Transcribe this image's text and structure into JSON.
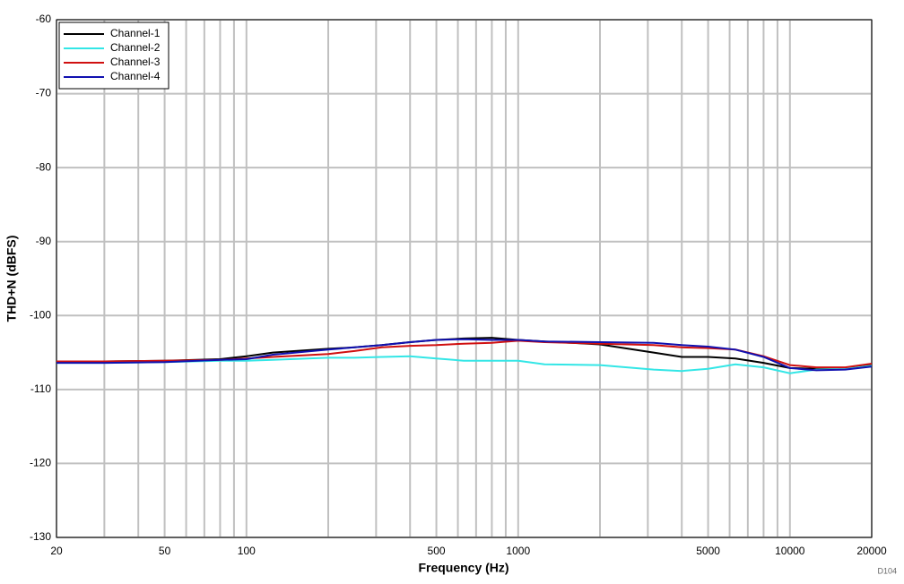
{
  "chart_data": {
    "type": "line",
    "x_label": "Frequency (Hz)",
    "y_label": "THD+N (dBFS)",
    "note": "D104",
    "x_log": true,
    "grid": true,
    "legend_position": "upper-left",
    "xlim": [
      20,
      20000
    ],
    "xticks": [
      20,
      50,
      100,
      500,
      1000,
      5000,
      10000,
      20000
    ],
    "x_minor_ticks": [
      30,
      40,
      60,
      70,
      80,
      90,
      200,
      300,
      400,
      600,
      700,
      800,
      900,
      2000,
      3000,
      4000,
      6000,
      7000,
      8000,
      9000
    ],
    "ylim": [
      -130,
      -60
    ],
    "yticks": [
      -130,
      -120,
      -110,
      -100,
      -90,
      -80,
      -70,
      -60
    ],
    "x": [
      20,
      30,
      50,
      80,
      100,
      125,
      200,
      250,
      315,
      400,
      500,
      630,
      800,
      1000,
      1250,
      2000,
      3150,
      4000,
      5000,
      6300,
      8000,
      10000,
      12500,
      16000,
      20000
    ],
    "series": [
      {
        "name": "Channel-1",
        "color": "#000000",
        "values": [
          -106.2,
          -106.2,
          -106.1,
          -105.9,
          -105.5,
          -105.0,
          -104.5,
          -104.3,
          -104.0,
          -103.6,
          -103.3,
          -103.1,
          -103.0,
          -103.3,
          -103.5,
          -103.9,
          -105.0,
          -105.6,
          -105.6,
          -105.8,
          -106.4,
          -107.1,
          -107.2,
          -107.1,
          -106.7
        ]
      },
      {
        "name": "Channel-2",
        "color": "#33e6e6",
        "values": [
          -106.4,
          -106.4,
          -106.3,
          -106.1,
          -106.1,
          -106.0,
          -105.7,
          -105.7,
          -105.6,
          -105.5,
          -105.8,
          -106.1,
          -106.1,
          -106.1,
          -106.6,
          -106.7,
          -107.3,
          -107.5,
          -107.2,
          -106.6,
          -107.0,
          -107.8,
          -107.3,
          -107.2,
          -106.8
        ]
      },
      {
        "name": "Channel-3",
        "color": "#d01010",
        "values": [
          -106.2,
          -106.2,
          -106.1,
          -106.0,
          -105.8,
          -105.6,
          -105.2,
          -104.8,
          -104.3,
          -104.1,
          -104.0,
          -103.8,
          -103.7,
          -103.4,
          -103.6,
          -103.8,
          -104.0,
          -104.3,
          -104.4,
          -104.6,
          -105.5,
          -106.7,
          -107.0,
          -107.0,
          -106.5
        ]
      },
      {
        "name": "Channel-4",
        "color": "#1010b0",
        "values": [
          -106.4,
          -106.4,
          -106.3,
          -106.0,
          -105.9,
          -105.3,
          -104.6,
          -104.3,
          -104.0,
          -103.6,
          -103.3,
          -103.2,
          -103.3,
          -103.3,
          -103.5,
          -103.6,
          -103.7,
          -104.0,
          -104.2,
          -104.6,
          -105.6,
          -107.1,
          -107.4,
          -107.3,
          -106.9
        ]
      }
    ]
  }
}
